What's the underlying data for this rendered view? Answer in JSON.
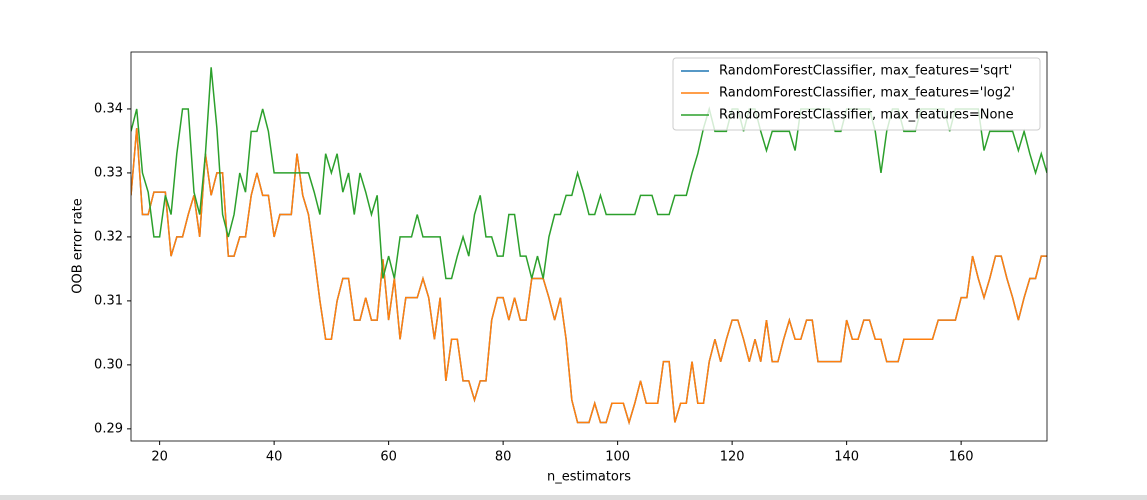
{
  "chart_data": {
    "type": "line",
    "xlabel": "n_estimators",
    "ylabel": "OOB error rate",
    "x": [
      15,
      16,
      17,
      18,
      19,
      20,
      21,
      22,
      23,
      24,
      25,
      26,
      27,
      28,
      29,
      30,
      31,
      32,
      33,
      34,
      35,
      36,
      37,
      38,
      39,
      40,
      41,
      42,
      43,
      44,
      45,
      46,
      47,
      48,
      49,
      50,
      51,
      52,
      53,
      54,
      55,
      56,
      57,
      58,
      59,
      60,
      61,
      62,
      63,
      64,
      65,
      66,
      67,
      68,
      69,
      70,
      71,
      72,
      73,
      74,
      75,
      76,
      77,
      78,
      79,
      80,
      81,
      82,
      83,
      84,
      85,
      86,
      87,
      88,
      89,
      90,
      91,
      92,
      93,
      94,
      95,
      96,
      97,
      98,
      99,
      100,
      101,
      102,
      103,
      104,
      105,
      106,
      107,
      108,
      109,
      110,
      111,
      112,
      113,
      114,
      115,
      116,
      117,
      118,
      119,
      120,
      121,
      122,
      123,
      124,
      125,
      126,
      127,
      128,
      129,
      130,
      131,
      132,
      133,
      134,
      135,
      136,
      137,
      138,
      139,
      140,
      141,
      142,
      143,
      144,
      145,
      146,
      147,
      148,
      149,
      150,
      151,
      152,
      153,
      154,
      155,
      156,
      157,
      158,
      159,
      160,
      161,
      162,
      163,
      164,
      165,
      166,
      167,
      168,
      169,
      170,
      171,
      172,
      173,
      174,
      175
    ],
    "series": [
      {
        "name": "RandomForestClassifier, max_features='sqrt'",
        "color": "#1f77b4",
        "values": [
          0.3265,
          0.337,
          0.3235,
          0.3235,
          0.327,
          0.327,
          0.327,
          0.317,
          0.32,
          0.32,
          0.3235,
          0.3265,
          0.32,
          0.333,
          0.3265,
          0.33,
          0.33,
          0.317,
          0.317,
          0.32,
          0.32,
          0.3265,
          0.33,
          0.3265,
          0.3265,
          0.32,
          0.3235,
          0.3235,
          0.3235,
          0.333,
          0.3265,
          0.3235,
          0.317,
          0.31,
          0.304,
          0.304,
          0.31,
          0.3135,
          0.3135,
          0.307,
          0.307,
          0.3105,
          0.307,
          0.307,
          0.3165,
          0.307,
          0.3135,
          0.304,
          0.3105,
          0.3105,
          0.3105,
          0.3135,
          0.3105,
          0.304,
          0.3105,
          0.2975,
          0.304,
          0.304,
          0.2975,
          0.2975,
          0.2945,
          0.2975,
          0.2975,
          0.307,
          0.3105,
          0.3105,
          0.307,
          0.3105,
          0.307,
          0.307,
          0.3135,
          0.3135,
          0.3135,
          0.3105,
          0.307,
          0.3105,
          0.304,
          0.2945,
          0.291,
          0.291,
          0.291,
          0.294,
          0.291,
          0.291,
          0.294,
          0.294,
          0.294,
          0.291,
          0.294,
          0.2975,
          0.294,
          0.294,
          0.294,
          0.3005,
          0.3005,
          0.291,
          0.294,
          0.294,
          0.3005,
          0.294,
          0.294,
          0.3005,
          0.304,
          0.3005,
          0.304,
          0.307,
          0.307,
          0.304,
          0.3005,
          0.304,
          0.3005,
          0.307,
          0.3005,
          0.3005,
          0.304,
          0.307,
          0.304,
          0.304,
          0.307,
          0.307,
          0.3005,
          0.3005,
          0.3005,
          0.3005,
          0.3005,
          0.307,
          0.304,
          0.304,
          0.307,
          0.307,
          0.304,
          0.304,
          0.3005,
          0.3005,
          0.3005,
          0.304,
          0.304,
          0.304,
          0.304,
          0.304,
          0.304,
          0.307,
          0.307,
          0.307,
          0.307,
          0.3105,
          0.3105,
          0.317,
          0.3135,
          0.3105,
          0.3135,
          0.317,
          0.317,
          0.3135,
          0.3105,
          0.307,
          0.3105,
          0.3135,
          0.3135,
          0.317,
          0.317
        ]
      },
      {
        "name": "RandomForestClassifier, max_features='log2'",
        "color": "#ff7f0e",
        "values": [
          0.3265,
          0.337,
          0.3235,
          0.3235,
          0.327,
          0.327,
          0.327,
          0.317,
          0.32,
          0.32,
          0.3235,
          0.3265,
          0.32,
          0.333,
          0.3265,
          0.33,
          0.33,
          0.317,
          0.317,
          0.32,
          0.32,
          0.3265,
          0.33,
          0.3265,
          0.3265,
          0.32,
          0.3235,
          0.3235,
          0.3235,
          0.333,
          0.3265,
          0.3235,
          0.317,
          0.31,
          0.304,
          0.304,
          0.31,
          0.3135,
          0.3135,
          0.307,
          0.307,
          0.3105,
          0.307,
          0.307,
          0.3165,
          0.307,
          0.3135,
          0.304,
          0.3105,
          0.3105,
          0.3105,
          0.3135,
          0.3105,
          0.304,
          0.3105,
          0.2975,
          0.304,
          0.304,
          0.2975,
          0.2975,
          0.2945,
          0.2975,
          0.2975,
          0.307,
          0.3105,
          0.3105,
          0.307,
          0.3105,
          0.307,
          0.307,
          0.3135,
          0.3135,
          0.3135,
          0.3105,
          0.307,
          0.3105,
          0.304,
          0.2945,
          0.291,
          0.291,
          0.291,
          0.294,
          0.291,
          0.291,
          0.294,
          0.294,
          0.294,
          0.291,
          0.294,
          0.2975,
          0.294,
          0.294,
          0.294,
          0.3005,
          0.3005,
          0.291,
          0.294,
          0.294,
          0.3005,
          0.294,
          0.294,
          0.3005,
          0.304,
          0.3005,
          0.304,
          0.307,
          0.307,
          0.304,
          0.3005,
          0.304,
          0.3005,
          0.307,
          0.3005,
          0.3005,
          0.304,
          0.307,
          0.304,
          0.304,
          0.307,
          0.307,
          0.3005,
          0.3005,
          0.3005,
          0.3005,
          0.3005,
          0.307,
          0.304,
          0.304,
          0.307,
          0.307,
          0.304,
          0.304,
          0.3005,
          0.3005,
          0.3005,
          0.304,
          0.304,
          0.304,
          0.304,
          0.304,
          0.304,
          0.307,
          0.307,
          0.307,
          0.307,
          0.3105,
          0.3105,
          0.317,
          0.3135,
          0.3105,
          0.3135,
          0.317,
          0.317,
          0.3135,
          0.3105,
          0.307,
          0.3105,
          0.3135,
          0.3135,
          0.317,
          0.317
        ]
      },
      {
        "name": "RandomForestClassifier, max_features=None",
        "color": "#2ca02c",
        "values": [
          0.3365,
          0.34,
          0.33,
          0.327,
          0.32,
          0.32,
          0.3265,
          0.3235,
          0.333,
          0.34,
          0.34,
          0.327,
          0.3235,
          0.333,
          0.3465,
          0.337,
          0.3235,
          0.32,
          0.3235,
          0.33,
          0.327,
          0.3365,
          0.3365,
          0.34,
          0.3365,
          0.33,
          0.33,
          0.33,
          0.33,
          0.33,
          0.33,
          0.33,
          0.327,
          0.3235,
          0.333,
          0.33,
          0.333,
          0.327,
          0.33,
          0.3235,
          0.33,
          0.327,
          0.3235,
          0.3265,
          0.3135,
          0.317,
          0.3135,
          0.32,
          0.32,
          0.32,
          0.3235,
          0.32,
          0.32,
          0.32,
          0.32,
          0.3135,
          0.3135,
          0.317,
          0.32,
          0.317,
          0.3235,
          0.3265,
          0.32,
          0.32,
          0.317,
          0.317,
          0.3235,
          0.3235,
          0.317,
          0.317,
          0.3135,
          0.317,
          0.3135,
          0.32,
          0.3235,
          0.3235,
          0.3265,
          0.3265,
          0.33,
          0.327,
          0.3235,
          0.3235,
          0.3265,
          0.3235,
          0.3235,
          0.3235,
          0.3235,
          0.3235,
          0.3235,
          0.3265,
          0.3265,
          0.3265,
          0.3235,
          0.3235,
          0.3235,
          0.3265,
          0.3265,
          0.3265,
          0.33,
          0.333,
          0.337,
          0.34,
          0.3365,
          0.3365,
          0.3365,
          0.34,
          0.34,
          0.3365,
          0.34,
          0.34,
          0.3365,
          0.3335,
          0.3365,
          0.3365,
          0.3365,
          0.3365,
          0.3335,
          0.34,
          0.34,
          0.34,
          0.34,
          0.34,
          0.34,
          0.3365,
          0.3365,
          0.34,
          0.34,
          0.34,
          0.34,
          0.34,
          0.3365,
          0.33,
          0.3365,
          0.34,
          0.34,
          0.3365,
          0.3365,
          0.3365,
          0.34,
          0.34,
          0.34,
          0.34,
          0.34,
          0.3365,
          0.34,
          0.34,
          0.34,
          0.34,
          0.34,
          0.3335,
          0.3365,
          0.3365,
          0.3365,
          0.3365,
          0.3365,
          0.3335,
          0.3365,
          0.333,
          0.33,
          0.333,
          0.33
        ]
      }
    ],
    "xlim": [
      15,
      175
    ],
    "xticks": [
      20,
      40,
      60,
      80,
      100,
      120,
      140,
      160
    ],
    "ylim": [
      0.2881,
      0.3489
    ],
    "yticks": [
      {
        "value": 0.29,
        "label": "0.29"
      },
      {
        "value": 0.3,
        "label": "0.30"
      },
      {
        "value": 0.31,
        "label": "0.31"
      },
      {
        "value": 0.32,
        "label": "0.32"
      },
      {
        "value": 0.33,
        "label": "0.33"
      },
      {
        "value": 0.34,
        "label": "0.34"
      }
    ],
    "legend": "upper right"
  }
}
